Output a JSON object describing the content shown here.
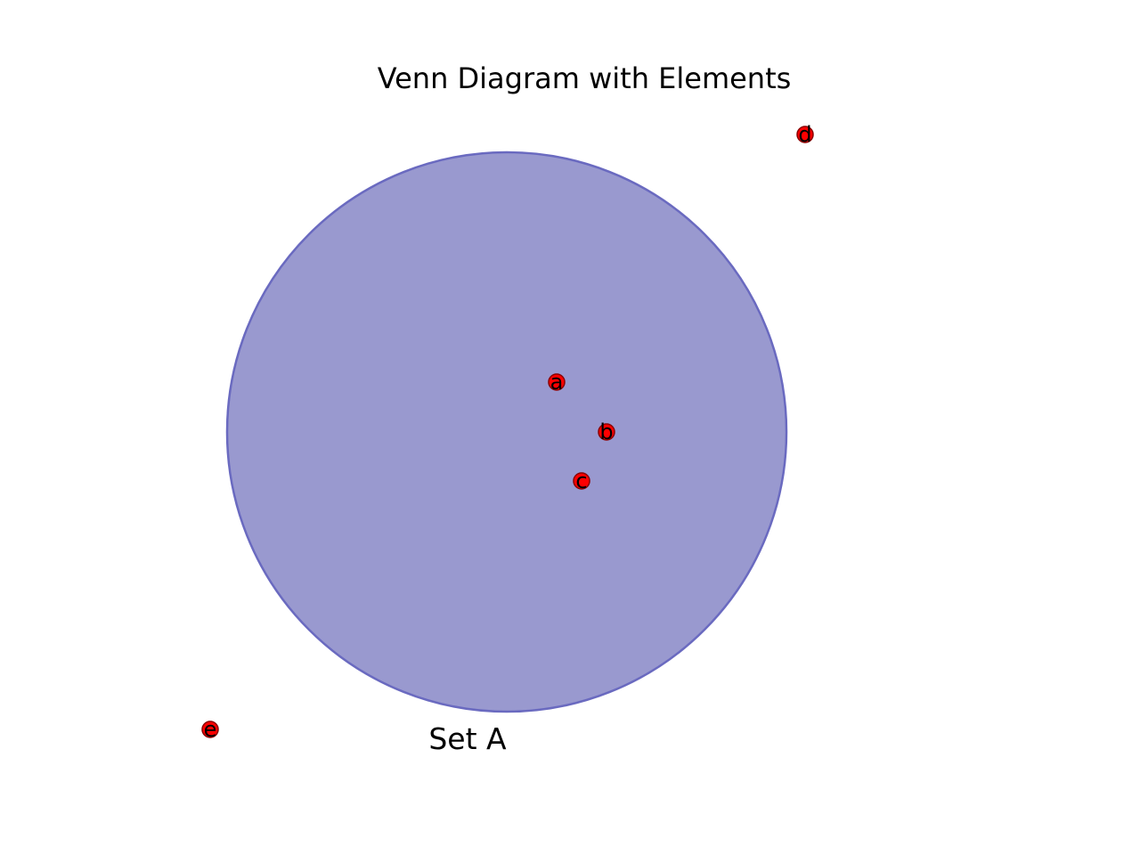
{
  "title": "Venn Diagram with Elements",
  "colors": {
    "set_fill": "#9999cf",
    "set_stroke": "#6a6ac0",
    "point_fill": "#ff0000",
    "point_stroke": "#8b0000",
    "text": "#000000",
    "background": "#ffffff"
  },
  "sets": [
    {
      "label": "Set A"
    }
  ],
  "elements": [
    {
      "label": "a",
      "in_set": "Set A"
    },
    {
      "label": "b",
      "in_set": "Set A"
    },
    {
      "label": "c",
      "in_set": "Set A"
    },
    {
      "label": "d",
      "in_set": ""
    },
    {
      "label": "e",
      "in_set": ""
    }
  ]
}
